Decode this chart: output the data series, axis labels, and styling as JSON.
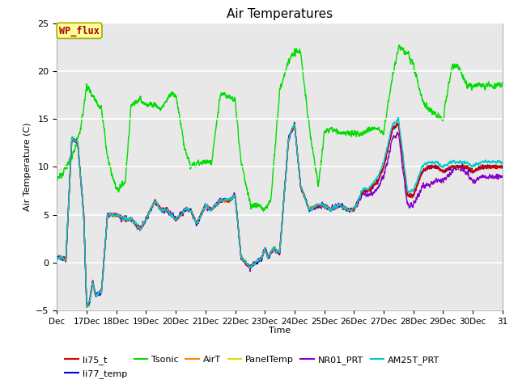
{
  "title": "Air Temperatures",
  "xlabel": "Time",
  "ylabel": "Air Temperature (C)",
  "ylim": [
    -5,
    25
  ],
  "bg_inner": "#e8e8e8",
  "xtick_labels": [
    "Dec",
    "17Dec",
    "18Dec",
    "19Dec",
    "20Dec",
    "21Dec",
    "22Dec",
    "23Dec",
    "24Dec",
    "25Dec",
    "26Dec",
    "27Dec",
    "28Dec",
    "29Dec",
    "30Dec",
    "31"
  ],
  "series": {
    "li75_t": {
      "color": "#dd0000",
      "lw": 1.0
    },
    "li77_temp": {
      "color": "#0000dd",
      "lw": 1.0
    },
    "Tsonic": {
      "color": "#00dd00",
      "lw": 1.0
    },
    "AirT": {
      "color": "#ff8800",
      "lw": 1.0
    },
    "PanelTemp": {
      "color": "#dddd00",
      "lw": 1.0
    },
    "NR01_PRT": {
      "color": "#8800cc",
      "lw": 1.0
    },
    "AM25T_PRT": {
      "color": "#00cccc",
      "lw": 1.0
    }
  },
  "annotation_text": "WP_flux",
  "annotation_color": "#aa0000",
  "annotation_bg": "#ffff99",
  "annotation_border": "#aaaa00",
  "tsonic_xp": [
    0,
    0.2,
    0.5,
    0.8,
    1.0,
    1.3,
    1.5,
    1.7,
    2.0,
    2.3,
    2.5,
    2.8,
    3.0,
    3.3,
    3.5,
    3.8,
    4.0,
    4.3,
    4.5,
    4.8,
    5.0,
    5.2,
    5.5,
    5.8,
    6.0,
    6.2,
    6.5,
    6.8,
    7.0,
    7.2,
    7.5,
    7.8,
    8.0,
    8.2,
    8.5,
    8.8,
    9.0,
    9.2,
    9.5,
    9.8,
    10.0,
    10.3,
    10.5,
    10.8,
    11.0,
    11.3,
    11.5,
    11.8,
    12.0,
    12.3,
    12.5,
    12.8,
    13.0,
    13.3,
    13.5,
    13.8,
    14.0,
    14.3,
    14.5,
    14.8,
    15.0
  ],
  "tsonic_yp": [
    8.5,
    9.5,
    11.0,
    14.0,
    18.5,
    17.0,
    16.0,
    11.0,
    7.5,
    8.5,
    16.5,
    17.0,
    16.5,
    16.5,
    16.0,
    17.5,
    17.5,
    12.0,
    10.0,
    10.5,
    10.5,
    10.5,
    17.5,
    17.5,
    17.0,
    10.5,
    6.0,
    6.0,
    5.5,
    6.5,
    18.0,
    21.0,
    22.0,
    22.0,
    14.0,
    8.0,
    13.5,
    14.0,
    13.5,
    13.5,
    13.5,
    13.5,
    14.0,
    14.0,
    13.5,
    19.5,
    22.5,
    22.0,
    20.5,
    17.0,
    16.0,
    15.5,
    15.0,
    20.5,
    20.5,
    18.5,
    18.5,
    18.5,
    18.5,
    18.5,
    18.5
  ],
  "main_xp": [
    0,
    0.15,
    0.3,
    0.5,
    0.7,
    0.9,
    1.0,
    1.05,
    1.1,
    1.2,
    1.3,
    1.5,
    1.7,
    2.0,
    2.3,
    2.5,
    2.8,
    3.0,
    3.3,
    3.5,
    3.7,
    4.0,
    4.3,
    4.5,
    4.7,
    5.0,
    5.2,
    5.5,
    5.8,
    6.0,
    6.2,
    6.5,
    6.7,
    6.9,
    7.0,
    7.05,
    7.1,
    7.2,
    7.3,
    7.5,
    7.8,
    8.0,
    8.2,
    8.5,
    8.8,
    9.0,
    9.2,
    9.5,
    9.8,
    10.0,
    10.3,
    10.5,
    10.8,
    11.0,
    11.3,
    11.5,
    11.8,
    12.0,
    12.3,
    12.5,
    12.8,
    13.0,
    13.3,
    13.5,
    13.8,
    14.0,
    14.3,
    14.5,
    14.8,
    15.0
  ],
  "main_yp": [
    0.5,
    0.5,
    0.3,
    13.0,
    12.5,
    5.0,
    -4.5,
    -4.5,
    -4.0,
    -2.0,
    -3.5,
    -3.0,
    5.0,
    5.0,
    4.5,
    4.5,
    3.5,
    4.5,
    6.5,
    5.5,
    5.5,
    4.5,
    5.5,
    5.5,
    4.0,
    6.0,
    5.5,
    6.5,
    6.5,
    7.0,
    0.5,
    -0.5,
    0.0,
    0.5,
    1.5,
    1.0,
    0.5,
    1.0,
    1.5,
    1.0,
    13.0,
    14.5,
    8.0,
    5.5,
    6.0,
    6.0,
    5.5,
    6.0,
    5.5,
    5.5,
    7.5,
    7.5,
    8.5,
    10.0,
    14.0,
    14.5,
    7.0,
    7.0,
    9.5,
    10.0,
    10.0,
    9.5,
    10.0,
    10.0,
    10.0,
    9.5,
    10.0,
    10.0,
    10.0,
    10.0
  ]
}
